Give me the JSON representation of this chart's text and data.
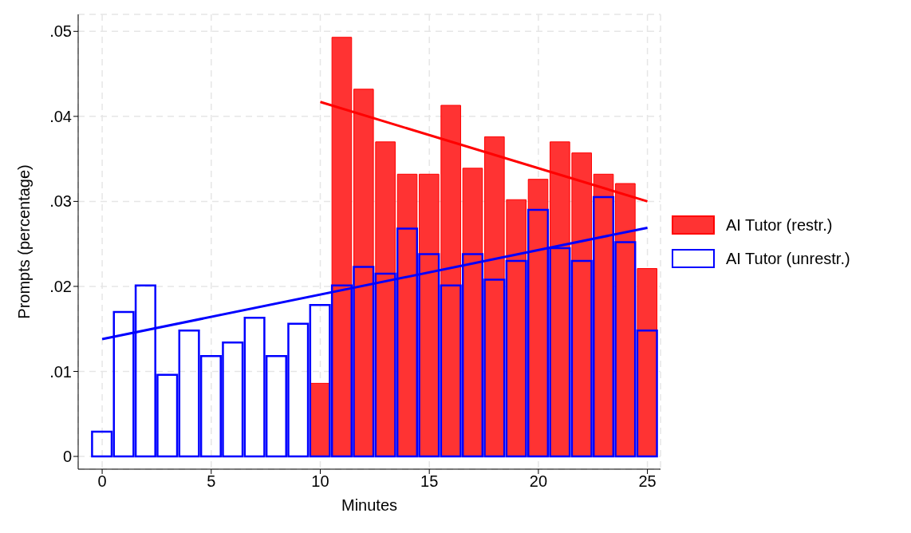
{
  "chart_data": {
    "type": "bar",
    "xlabel": "Minutes",
    "ylabel": "Prompts (percentage)",
    "x": [
      0,
      1,
      2,
      3,
      4,
      5,
      6,
      7,
      8,
      9,
      10,
      11,
      12,
      13,
      14,
      15,
      16,
      17,
      18,
      19,
      20,
      21,
      22,
      23,
      24,
      25
    ],
    "series": [
      {
        "name": "AI Tutor (restr.)",
        "color": "#ff3333",
        "values": [
          null,
          null,
          null,
          null,
          null,
          null,
          null,
          null,
          null,
          null,
          0.0086,
          0.0493,
          0.0432,
          0.037,
          0.0332,
          0.0332,
          0.0413,
          0.0339,
          0.0376,
          0.0302,
          0.0326,
          0.037,
          0.0357,
          0.0332,
          0.0321,
          0.0221
        ]
      },
      {
        "name": "AI Tutor (unrestr.)",
        "color": "#0000ff",
        "values": [
          0.0029,
          0.017,
          0.0201,
          0.0096,
          0.0148,
          0.0118,
          0.0134,
          0.0163,
          0.0118,
          0.0156,
          0.0178,
          0.0201,
          0.0223,
          0.0215,
          0.0268,
          0.0238,
          0.0201,
          0.0238,
          0.0208,
          0.023,
          0.029,
          0.0245,
          0.023,
          0.0305,
          0.0252,
          0.0148
        ]
      },
      {
        "type": "line",
        "color": "#ff0000",
        "x": [
          10,
          25
        ],
        "values": [
          0.0417,
          0.03
        ]
      },
      {
        "type": "line",
        "color": "#0000ff",
        "x": [
          0,
          25
        ],
        "values": [
          0.0138,
          0.0269
        ]
      }
    ],
    "xlim": [
      -1.1,
      25.6
    ],
    "xticks": [
      0,
      5,
      10,
      15,
      20,
      25
    ],
    "ylim": [
      -0.0015,
      0.052
    ],
    "yticks": [
      0,
      {
        "value": 0.01,
        "label": ".01"
      },
      {
        "value": 0.02,
        "label": ".02"
      },
      {
        "value": 0.03,
        "label": ".03"
      },
      {
        "value": 0.04,
        "label": ".04"
      },
      {
        "value": 0.05,
        "label": ".05"
      }
    ],
    "grid": true,
    "legend": "right",
    "marker": "none",
    "line_style": "solid"
  }
}
